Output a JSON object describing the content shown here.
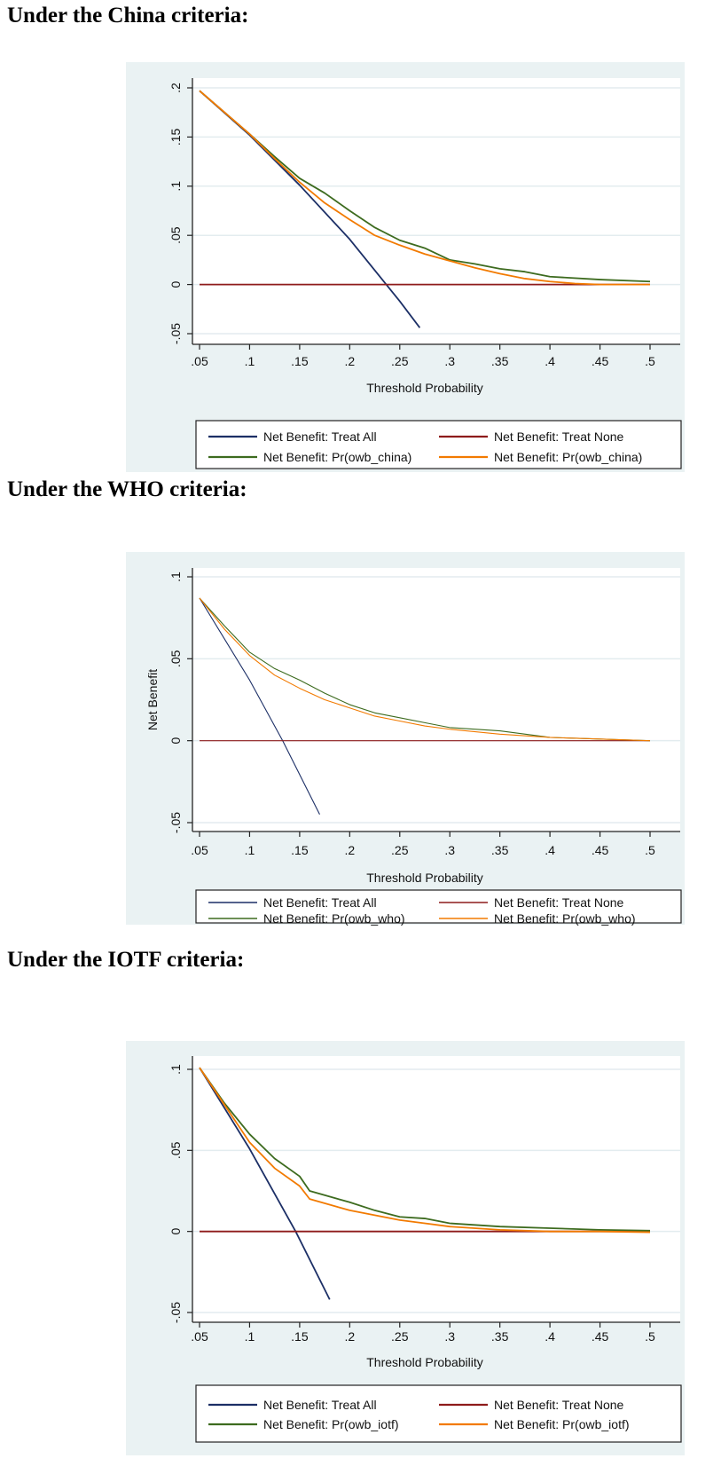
{
  "headings": [
    "Under the China criteria:",
    "Under the WHO criteria:",
    "Under the IOTF criteria:"
  ],
  "colors": {
    "treat_all": "#1c2f66",
    "treat_none": "#8e1b1b",
    "model_green": "#3d6b1f",
    "model_orange": "#f27a00",
    "panel_bg": "#eaf2f3",
    "grid": "#e3ecef"
  },
  "chart_data": [
    {
      "type": "line",
      "title": "Under the China criteria:",
      "xlabel": "Threshold Probability",
      "ylabel": "",
      "xlim": [
        0.05,
        0.5
      ],
      "ylim": [
        -0.05,
        0.2
      ],
      "xticks": [
        ".05",
        ".1",
        ".15",
        ".2",
        ".25",
        ".3",
        ".35",
        ".4",
        ".45",
        ".5"
      ],
      "xtick_values": [
        0.05,
        0.1,
        0.15,
        0.2,
        0.25,
        0.3,
        0.35,
        0.4,
        0.45,
        0.5
      ],
      "yticks": [
        "-.05",
        "0",
        ".05",
        ".1",
        ".15",
        ".2"
      ],
      "ytick_values": [
        -0.05,
        0,
        0.05,
        0.1,
        0.15,
        0.2
      ],
      "grid": true,
      "legend_position": "bottom",
      "series": [
        {
          "name": "Net Benefit: Treat All",
          "color_key": "treat_all",
          "x": [
            0.05,
            0.1,
            0.15,
            0.2,
            0.25,
            0.27
          ],
          "y": [
            0.197,
            0.152,
            0.101,
            0.046,
            -0.017,
            -0.044
          ]
        },
        {
          "name": "Net Benefit: Treat None",
          "color_key": "treat_none",
          "x": [
            0.05,
            0.5
          ],
          "y": [
            0,
            0
          ]
        },
        {
          "name": "Net Benefit: Pr(owb_china)",
          "color_key": "model_green",
          "x": [
            0.05,
            0.1,
            0.125,
            0.15,
            0.175,
            0.2,
            0.225,
            0.25,
            0.275,
            0.3,
            0.325,
            0.35,
            0.375,
            0.4,
            0.45,
            0.5
          ],
          "y": [
            0.197,
            0.153,
            0.13,
            0.108,
            0.093,
            0.075,
            0.058,
            0.045,
            0.037,
            0.025,
            0.021,
            0.016,
            0.013,
            0.008,
            0.005,
            0.003
          ]
        },
        {
          "name": "Net Benefit: Pr(owb_china)",
          "color_key": "model_orange",
          "x": [
            0.05,
            0.1,
            0.125,
            0.15,
            0.175,
            0.2,
            0.225,
            0.25,
            0.275,
            0.3,
            0.325,
            0.35,
            0.375,
            0.4,
            0.425,
            0.45,
            0.5
          ],
          "y": [
            0.197,
            0.153,
            0.128,
            0.104,
            0.083,
            0.066,
            0.05,
            0.04,
            0.031,
            0.024,
            0.017,
            0.011,
            0.006,
            0.003,
            0.001,
            0,
            0
          ]
        }
      ]
    },
    {
      "type": "line",
      "title": "Under the WHO criteria:",
      "xlabel": "Threshold Probability",
      "ylabel": "Net Benefit",
      "xlim": [
        0.05,
        0.5
      ],
      "ylim": [
        -0.05,
        0.1
      ],
      "xticks": [
        ".05",
        ".1",
        ".15",
        ".2",
        ".25",
        ".3",
        ".35",
        ".4",
        ".45",
        ".5"
      ],
      "xtick_values": [
        0.05,
        0.1,
        0.15,
        0.2,
        0.25,
        0.3,
        0.35,
        0.4,
        0.45,
        0.5
      ],
      "yticks": [
        "-.05",
        "0",
        ".05",
        ".1"
      ],
      "ytick_values": [
        -0.05,
        0,
        0.05,
        0.1
      ],
      "grid": true,
      "legend_position": "bottom",
      "series": [
        {
          "name": "Net Benefit: Treat All",
          "color_key": "treat_all",
          "x": [
            0.05,
            0.1,
            0.133,
            0.17
          ],
          "y": [
            0.087,
            0.037,
            0,
            -0.045
          ]
        },
        {
          "name": "Net Benefit: Treat None",
          "color_key": "treat_none",
          "x": [
            0.05,
            0.5
          ],
          "y": [
            0,
            0
          ]
        },
        {
          "name": "Net Benefit: Pr(owb_who)",
          "color_key": "model_green",
          "x": [
            0.05,
            0.075,
            0.1,
            0.125,
            0.15,
            0.175,
            0.2,
            0.225,
            0.25,
            0.275,
            0.3,
            0.35,
            0.4,
            0.45,
            0.5
          ],
          "y": [
            0.087,
            0.07,
            0.054,
            0.044,
            0.037,
            0.029,
            0.022,
            0.017,
            0.014,
            0.011,
            0.008,
            0.006,
            0.002,
            0.001,
            0
          ]
        },
        {
          "name": "Net Benefit: Pr(owb_who)",
          "color_key": "model_orange",
          "x": [
            0.05,
            0.075,
            0.1,
            0.125,
            0.15,
            0.175,
            0.2,
            0.225,
            0.25,
            0.275,
            0.3,
            0.35,
            0.4,
            0.45,
            0.5
          ],
          "y": [
            0.087,
            0.068,
            0.052,
            0.04,
            0.032,
            0.025,
            0.02,
            0.015,
            0.012,
            0.009,
            0.007,
            0.004,
            0.002,
            0.001,
            0
          ]
        }
      ]
    },
    {
      "type": "line",
      "title": "Under the IOTF criteria:",
      "xlabel": "Threshold Probability",
      "ylabel": "",
      "xlim": [
        0.05,
        0.5
      ],
      "ylim": [
        -0.05,
        0.1
      ],
      "xticks": [
        ".05",
        ".1",
        ".15",
        ".2",
        ".25",
        ".3",
        ".35",
        ".4",
        ".45",
        ".5"
      ],
      "xtick_values": [
        0.05,
        0.1,
        0.15,
        0.2,
        0.25,
        0.3,
        0.35,
        0.4,
        0.45,
        0.5
      ],
      "yticks": [
        "-.05",
        "0",
        ".05",
        ".1"
      ],
      "ytick_values": [
        -0.05,
        0,
        0.05,
        0.1
      ],
      "grid": true,
      "legend_position": "bottom",
      "series": [
        {
          "name": "Net Benefit: Treat All",
          "color_key": "treat_all",
          "x": [
            0.05,
            0.1,
            0.146,
            0.18
          ],
          "y": [
            0.101,
            0.051,
            0,
            -0.042
          ]
        },
        {
          "name": "Net Benefit: Treat None",
          "color_key": "treat_none",
          "x": [
            0.05,
            0.5
          ],
          "y": [
            0,
            0
          ]
        },
        {
          "name": "Net Benefit: Pr(owb_iotf)",
          "color_key": "model_green",
          "x": [
            0.05,
            0.075,
            0.1,
            0.125,
            0.15,
            0.16,
            0.2,
            0.225,
            0.25,
            0.275,
            0.3,
            0.35,
            0.4,
            0.45,
            0.5
          ],
          "y": [
            0.101,
            0.079,
            0.06,
            0.045,
            0.034,
            0.025,
            0.018,
            0.013,
            0.009,
            0.008,
            0.005,
            0.003,
            0.002,
            0.001,
            0.0005
          ]
        },
        {
          "name": "Net Benefit: Pr(owb_iotf)",
          "color_key": "model_orange",
          "x": [
            0.05,
            0.075,
            0.1,
            0.125,
            0.15,
            0.16,
            0.2,
            0.225,
            0.25,
            0.275,
            0.3,
            0.35,
            0.4,
            0.45,
            0.5
          ],
          "y": [
            0.101,
            0.078,
            0.055,
            0.039,
            0.028,
            0.02,
            0.013,
            0.01,
            0.007,
            0.005,
            0.003,
            0.001,
            0,
            0,
            -0.0005
          ]
        }
      ]
    }
  ]
}
